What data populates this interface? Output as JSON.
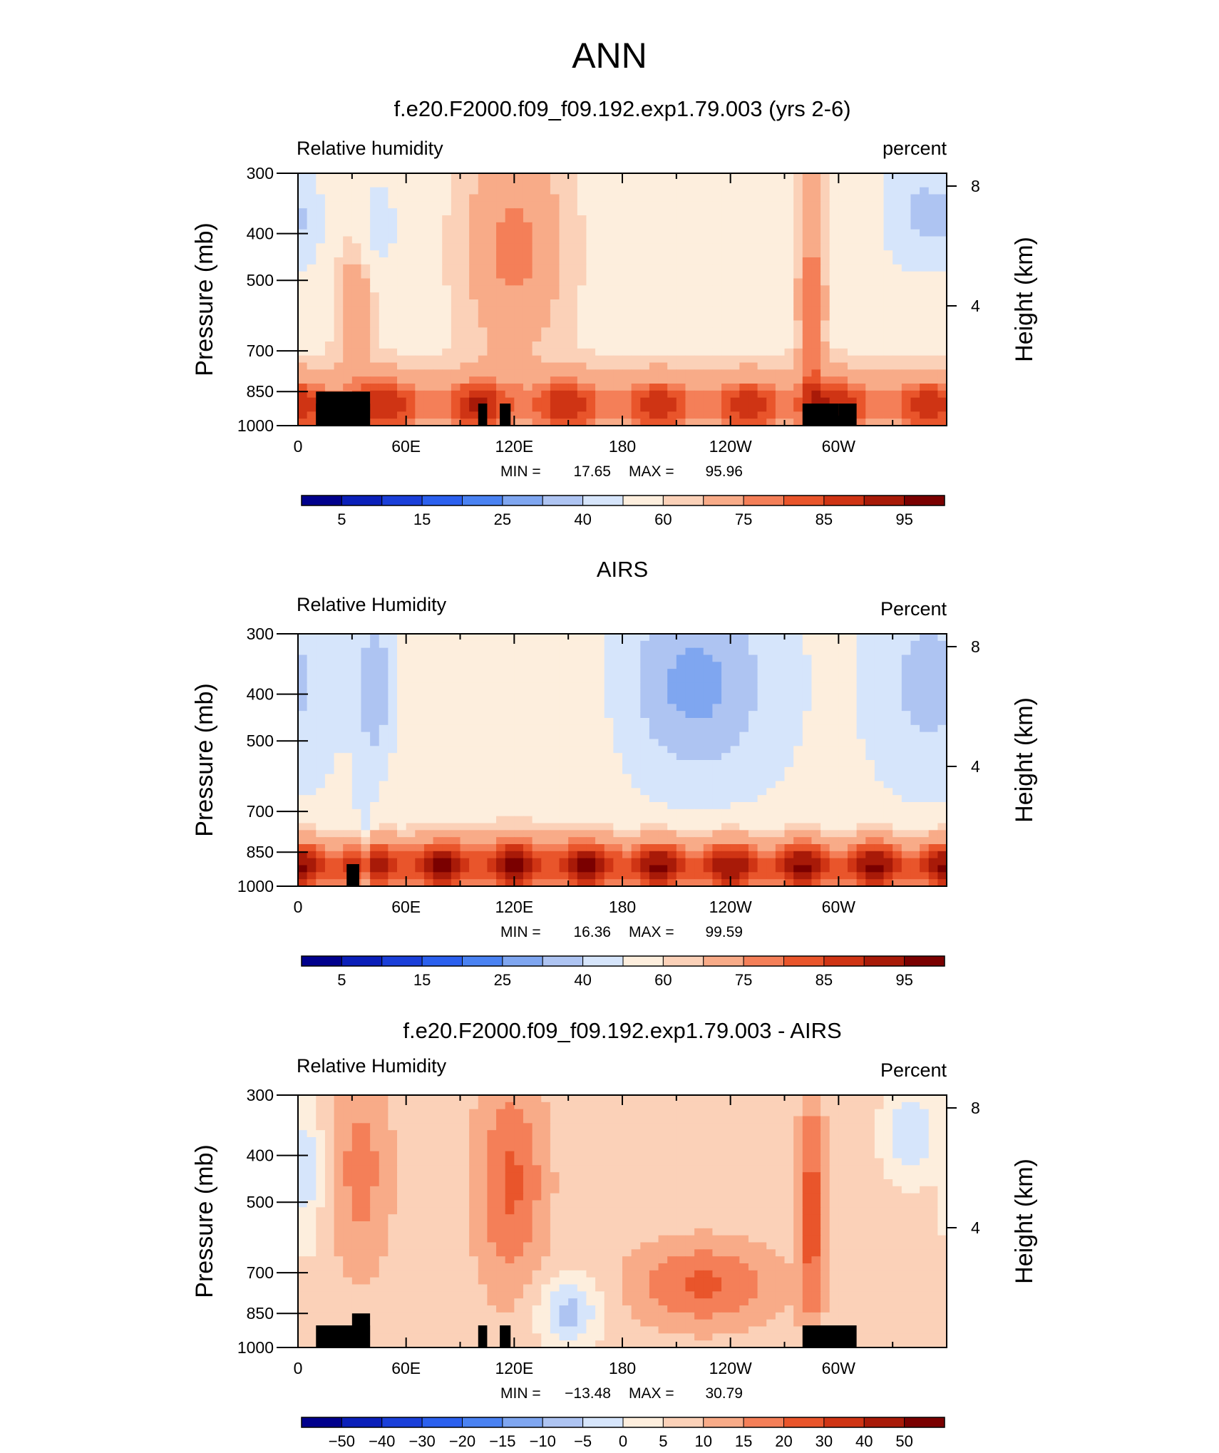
{
  "figure": {
    "super_title": "ANN"
  },
  "palette": [
    "#00008c",
    "#0a1fb9",
    "#1a3fd9",
    "#2b60ee",
    "#4a82f2",
    "#7fa6f0",
    "#aec4f2",
    "#d6e5fb",
    "#fdeedd",
    "#fbd1b8",
    "#f8ab88",
    "#f47f58",
    "#e9552b",
    "#cf3414",
    "#a81a08",
    "#7a0000"
  ],
  "chart_data": [
    {
      "type": "heatmap",
      "title": "f.e20.F2000.f09_f09.192.exp1.79.003 (yrs 2-6)",
      "left_label": "Relative humidity",
      "right_label": "percent",
      "ylabel": "Pressure (mb)",
      "y2label": "Height (km)",
      "x_ticks": [
        "0",
        "60E",
        "120E",
        "180",
        "120W",
        "60W"
      ],
      "y_ticks": [
        "300",
        "400",
        "500",
        "700",
        "850",
        "1000"
      ],
      "y2_ticks": [
        "8",
        "4"
      ],
      "min_label": "MIN =",
      "min_value": "17.65",
      "max_label": "MAX =",
      "max_value": "95.96",
      "field_min": 17.65,
      "field_max": 95.96,
      "colorbar_levels": [
        0,
        5,
        10,
        15,
        20,
        25,
        30,
        40,
        50,
        60,
        65,
        75,
        80,
        85,
        90,
        95,
        100
      ],
      "colorbar_labels": [
        "5",
        "15",
        "25",
        "40",
        "60",
        "75",
        "85",
        "95"
      ],
      "terrain_masks": [
        [
          10,
          40,
          850
        ],
        [
          10,
          40,
          900
        ],
        [
          100,
          105,
          900
        ],
        [
          112,
          118,
          900
        ],
        [
          280,
          300,
          900
        ],
        [
          300,
          310,
          900
        ]
      ]
    },
    {
      "type": "heatmap",
      "title": "AIRS",
      "left_label": "Relative Humidity",
      "right_label": "Percent",
      "ylabel": "Pressure (mb)",
      "y2label": "Height (km)",
      "x_ticks": [
        "0",
        "60E",
        "120E",
        "180",
        "120W",
        "60W"
      ],
      "y_ticks": [
        "300",
        "400",
        "500",
        "700",
        "850",
        "1000"
      ],
      "y2_ticks": [
        "8",
        "4"
      ],
      "min_label": "MIN =",
      "min_value": "16.36",
      "max_label": "MAX =",
      "max_value": "99.59",
      "field_min": 16.36,
      "field_max": 99.59,
      "colorbar_levels": [
        0,
        5,
        10,
        15,
        20,
        25,
        30,
        40,
        50,
        60,
        65,
        75,
        80,
        85,
        90,
        95,
        100
      ],
      "colorbar_labels": [
        "5",
        "15",
        "25",
        "40",
        "60",
        "75",
        "85",
        "95"
      ],
      "terrain_masks": [
        [
          27,
          34,
          900
        ]
      ]
    },
    {
      "type": "heatmap",
      "title": "f.e20.F2000.f09_f09.192.exp1.79.003 - AIRS",
      "left_label": "Relative Humidity",
      "right_label": "Percent",
      "ylabel": "Pressure (mb)",
      "y2label": "Height (km)",
      "x_ticks": [
        "0",
        "60E",
        "120E",
        "180",
        "120W",
        "60W"
      ],
      "y_ticks": [
        "300",
        "400",
        "500",
        "700",
        "850",
        "1000"
      ],
      "y2_ticks": [
        "8",
        "4"
      ],
      "min_label": "MIN =",
      "min_value": "−13.48",
      "max_label": "MAX =",
      "max_value": "30.79",
      "field_min": -13.48,
      "field_max": 30.79,
      "colorbar_levels": [
        -60,
        -50,
        -40,
        -30,
        -20,
        -15,
        -10,
        -5,
        0,
        5,
        10,
        15,
        20,
        30,
        40,
        50,
        60
      ],
      "colorbar_labels": [
        "−50",
        "−40",
        "−30",
        "−20",
        "−15",
        "−10",
        "−5",
        "0",
        "5",
        "10",
        "15",
        "20",
        "30",
        "40",
        "50"
      ],
      "terrain_masks": [
        [
          10,
          40,
          900
        ],
        [
          30,
          40,
          850
        ],
        [
          100,
          105,
          900
        ],
        [
          112,
          118,
          900
        ],
        [
          280,
          310,
          900
        ]
      ]
    }
  ]
}
